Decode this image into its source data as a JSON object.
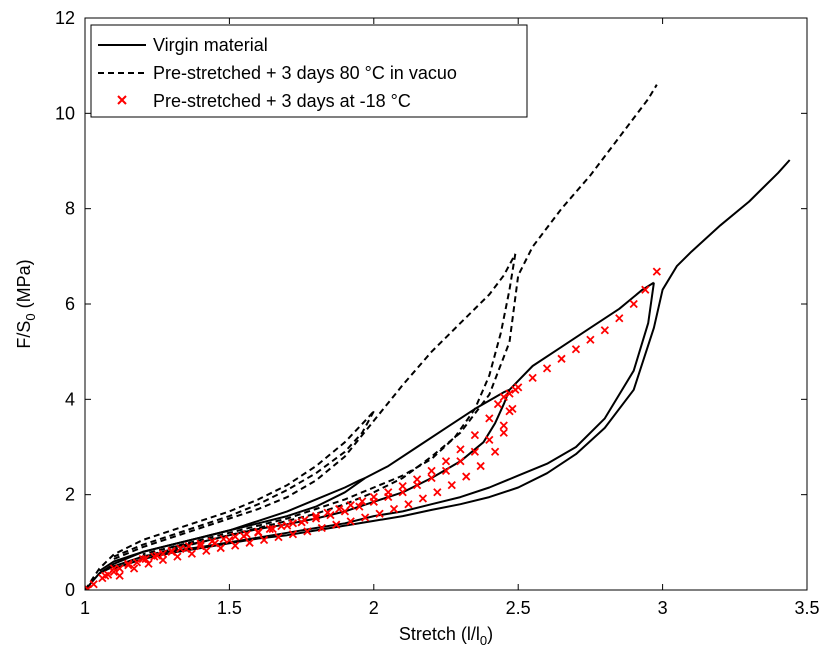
{
  "chart_data": {
    "type": "line",
    "xlabel": {
      "main": "Stretch (l/l",
      "sub": "0",
      "tail": ")"
    },
    "ylabel": {
      "main": "F/S",
      "sub": "0",
      "tail": " (MPa)"
    },
    "xlim": [
      1,
      3.5
    ],
    "ylim": [
      0,
      12
    ],
    "xticks": [
      1,
      1.5,
      2,
      2.5,
      3,
      3.5
    ],
    "yticks": [
      0,
      2,
      4,
      6,
      8,
      10,
      12
    ],
    "grid": false,
    "legend_position": "top-left",
    "colors": {
      "virgin": "#000000",
      "vacuo": "#000000",
      "frozen": "#ff0000"
    },
    "series": [
      {
        "name": "Virgin material",
        "style": "solid",
        "paths": [
          [
            [
              1.0,
              0.0
            ],
            [
              1.05,
              0.35
            ],
            [
              1.1,
              0.55
            ],
            [
              1.2,
              0.8
            ],
            [
              1.3,
              0.95
            ],
            [
              1.4,
              1.1
            ],
            [
              1.5,
              1.25
            ],
            [
              1.6,
              1.45
            ],
            [
              1.7,
              1.65
            ],
            [
              1.8,
              1.9
            ],
            [
              1.9,
              2.15
            ],
            [
              1.95,
              2.3
            ],
            [
              1.97,
              2.35
            ]
          ],
          [
            [
              1.97,
              2.35
            ],
            [
              1.9,
              2.05
            ],
            [
              1.8,
              1.75
            ],
            [
              1.7,
              1.55
            ],
            [
              1.6,
              1.4
            ],
            [
              1.5,
              1.25
            ],
            [
              1.4,
              1.1
            ],
            [
              1.3,
              0.95
            ],
            [
              1.2,
              0.8
            ],
            [
              1.1,
              0.6
            ],
            [
              1.05,
              0.4
            ]
          ],
          [
            [
              1.97,
              2.35
            ],
            [
              2.05,
              2.6
            ],
            [
              2.15,
              3.0
            ],
            [
              2.25,
              3.4
            ],
            [
              2.35,
              3.8
            ],
            [
              2.45,
              4.15
            ],
            [
              2.47,
              4.2
            ]
          ],
          [
            [
              2.47,
              4.2
            ],
            [
              2.45,
              3.9
            ],
            [
              2.42,
              3.5
            ],
            [
              2.38,
              3.1
            ],
            [
              2.3,
              2.7
            ],
            [
              2.2,
              2.35
            ],
            [
              2.1,
              2.05
            ],
            [
              2.0,
              1.85
            ],
            [
              1.9,
              1.65
            ],
            [
              1.8,
              1.5
            ],
            [
              1.7,
              1.38
            ],
            [
              1.6,
              1.28
            ],
            [
              1.5,
              1.15
            ],
            [
              1.4,
              1.0
            ],
            [
              1.3,
              0.9
            ]
          ],
          [
            [
              2.47,
              4.2
            ],
            [
              2.55,
              4.7
            ],
            [
              2.65,
              5.1
            ],
            [
              2.75,
              5.5
            ],
            [
              2.85,
              5.9
            ],
            [
              2.93,
              6.3
            ],
            [
              2.97,
              6.45
            ]
          ],
          [
            [
              2.97,
              6.45
            ],
            [
              2.95,
              5.6
            ],
            [
              2.9,
              4.6
            ],
            [
              2.8,
              3.6
            ],
            [
              2.7,
              3.0
            ],
            [
              2.6,
              2.65
            ],
            [
              2.5,
              2.4
            ],
            [
              2.4,
              2.15
            ],
            [
              2.3,
              1.95
            ],
            [
              2.2,
              1.8
            ],
            [
              2.1,
              1.65
            ],
            [
              2.0,
              1.55
            ],
            [
              1.9,
              1.4
            ],
            [
              1.8,
              1.3
            ],
            [
              1.7,
              1.2
            ],
            [
              1.6,
              1.1
            ],
            [
              1.5,
              1.0
            ],
            [
              1.4,
              0.9
            ],
            [
              1.3,
              0.82
            ],
            [
              1.2,
              0.7
            ],
            [
              1.1,
              0.5
            ],
            [
              1.05,
              0.35
            ]
          ],
          [
            [
              1.1,
              0.45
            ],
            [
              1.2,
              0.65
            ],
            [
              1.3,
              0.78
            ],
            [
              1.4,
              0.88
            ],
            [
              1.5,
              0.98
            ],
            [
              1.6,
              1.08
            ],
            [
              1.7,
              1.15
            ],
            [
              1.8,
              1.25
            ],
            [
              1.9,
              1.35
            ],
            [
              2.0,
              1.45
            ],
            [
              2.1,
              1.55
            ],
            [
              2.2,
              1.68
            ],
            [
              2.3,
              1.8
            ],
            [
              2.4,
              1.95
            ],
            [
              2.5,
              2.15
            ],
            [
              2.6,
              2.45
            ],
            [
              2.7,
              2.85
            ],
            [
              2.8,
              3.4
            ],
            [
              2.9,
              4.2
            ],
            [
              2.97,
              5.5
            ],
            [
              3.0,
              6.3
            ],
            [
              3.05,
              6.8
            ],
            [
              3.1,
              7.1
            ],
            [
              3.2,
              7.65
            ],
            [
              3.3,
              8.15
            ],
            [
              3.4,
              8.75
            ],
            [
              3.44,
              9.02
            ]
          ]
        ]
      },
      {
        "name": "Pre-stretched + 3 days 80 °C in vacuo",
        "style": "dashed",
        "paths": [
          [
            [
              1.0,
              0.0
            ],
            [
              1.05,
              0.45
            ],
            [
              1.1,
              0.75
            ],
            [
              1.2,
              1.05
            ],
            [
              1.3,
              1.25
            ],
            [
              1.4,
              1.45
            ],
            [
              1.5,
              1.65
            ],
            [
              1.6,
              1.9
            ],
            [
              1.7,
              2.2
            ],
            [
              1.8,
              2.6
            ],
            [
              1.9,
              3.1
            ],
            [
              1.97,
              3.55
            ],
            [
              2.0,
              3.75
            ]
          ],
          [
            [
              2.0,
              3.75
            ],
            [
              1.96,
              3.3
            ],
            [
              1.9,
              2.9
            ],
            [
              1.8,
              2.45
            ],
            [
              1.7,
              2.1
            ],
            [
              1.6,
              1.8
            ],
            [
              1.5,
              1.55
            ],
            [
              1.4,
              1.35
            ],
            [
              1.3,
              1.15
            ],
            [
              1.2,
              0.95
            ],
            [
              1.1,
              0.7
            ]
          ],
          [
            [
              1.1,
              0.65
            ],
            [
              1.2,
              0.9
            ],
            [
              1.3,
              1.1
            ],
            [
              1.4,
              1.3
            ],
            [
              1.5,
              1.5
            ],
            [
              1.6,
              1.7
            ],
            [
              1.7,
              1.95
            ],
            [
              1.8,
              2.3
            ],
            [
              1.9,
              2.8
            ],
            [
              2.0,
              3.55
            ],
            [
              2.1,
              4.3
            ],
            [
              2.2,
              5.0
            ],
            [
              2.3,
              5.6
            ],
            [
              2.4,
              6.2
            ],
            [
              2.45,
              6.6
            ],
            [
              2.49,
              7.05
            ]
          ],
          [
            [
              2.49,
              7.05
            ],
            [
              2.47,
              6.3
            ],
            [
              2.44,
              5.4
            ],
            [
              2.4,
              4.5
            ],
            [
              2.35,
              3.8
            ],
            [
              2.28,
              3.2
            ],
            [
              2.2,
              2.75
            ],
            [
              2.1,
              2.4
            ],
            [
              2.0,
              2.15
            ],
            [
              1.9,
              1.9
            ],
            [
              1.8,
              1.7
            ],
            [
              1.7,
              1.5
            ],
            [
              1.6,
              1.35
            ],
            [
              1.5,
              1.2
            ],
            [
              1.4,
              1.05
            ],
            [
              1.3,
              0.9
            ],
            [
              1.2,
              0.75
            ]
          ],
          [
            [
              1.2,
              0.7
            ],
            [
              1.3,
              0.85
            ],
            [
              1.4,
              1.0
            ],
            [
              1.5,
              1.15
            ],
            [
              1.6,
              1.3
            ],
            [
              1.7,
              1.45
            ],
            [
              1.8,
              1.6
            ],
            [
              1.9,
              1.8
            ],
            [
              2.0,
              2.05
            ],
            [
              2.1,
              2.35
            ],
            [
              2.2,
              2.8
            ],
            [
              2.3,
              3.3
            ],
            [
              2.4,
              4.1
            ],
            [
              2.47,
              5.2
            ],
            [
              2.5,
              6.6
            ],
            [
              2.55,
              7.2
            ],
            [
              2.65,
              8.0
            ],
            [
              2.75,
              8.7
            ],
            [
              2.85,
              9.5
            ],
            [
              2.95,
              10.3
            ],
            [
              2.98,
              10.6
            ]
          ]
        ]
      },
      {
        "name": "Pre-stretched + 3 days at -18 °C",
        "style": "marker-x",
        "points": [
          [
            1.01,
            0.02
          ],
          [
            1.03,
            0.12
          ],
          [
            1.06,
            0.25
          ],
          [
            1.08,
            0.32
          ],
          [
            1.1,
            0.38
          ],
          [
            1.12,
            0.45
          ],
          [
            1.15,
            0.52
          ],
          [
            1.18,
            0.58
          ],
          [
            1.21,
            0.65
          ],
          [
            1.24,
            0.7
          ],
          [
            1.27,
            0.76
          ],
          [
            1.3,
            0.82
          ],
          [
            1.33,
            0.87
          ],
          [
            1.36,
            0.92
          ],
          [
            1.4,
            0.97
          ],
          [
            1.44,
            1.02
          ],
          [
            1.48,
            1.07
          ],
          [
            1.52,
            1.12
          ],
          [
            1.56,
            1.17
          ],
          [
            1.6,
            1.22
          ],
          [
            1.64,
            1.28
          ],
          [
            1.68,
            1.34
          ],
          [
            1.72,
            1.4
          ],
          [
            1.76,
            1.47
          ],
          [
            1.8,
            1.55
          ],
          [
            1.84,
            1.62
          ],
          [
            1.88,
            1.7
          ],
          [
            1.92,
            1.78
          ],
          [
            1.96,
            1.86
          ],
          [
            2.0,
            1.95
          ],
          [
            2.05,
            2.05
          ],
          [
            2.1,
            2.18
          ],
          [
            2.15,
            2.32
          ],
          [
            2.2,
            2.5
          ],
          [
            2.25,
            2.7
          ],
          [
            2.3,
            2.95
          ],
          [
            2.35,
            3.25
          ],
          [
            2.4,
            3.6
          ],
          [
            2.43,
            3.9
          ],
          [
            2.45,
            4.05
          ],
          [
            2.47,
            4.12
          ],
          [
            2.49,
            4.2
          ],
          [
            2.48,
            3.8
          ],
          [
            2.45,
            3.45
          ],
          [
            2.4,
            3.15
          ],
          [
            2.35,
            2.9
          ],
          [
            2.3,
            2.7
          ],
          [
            2.25,
            2.5
          ],
          [
            2.2,
            2.35
          ],
          [
            2.15,
            2.2
          ],
          [
            2.1,
            2.05
          ],
          [
            2.05,
            1.95
          ],
          [
            2.0,
            1.85
          ],
          [
            1.95,
            1.75
          ],
          [
            1.9,
            1.65
          ],
          [
            1.85,
            1.57
          ],
          [
            1.8,
            1.5
          ],
          [
            1.75,
            1.42
          ],
          [
            1.7,
            1.35
          ],
          [
            1.65,
            1.28
          ],
          [
            1.6,
            1.2
          ],
          [
            1.55,
            1.13
          ],
          [
            1.5,
            1.05
          ],
          [
            1.45,
            0.98
          ],
          [
            1.4,
            0.92
          ],
          [
            1.35,
            0.86
          ],
          [
            1.3,
            0.8
          ],
          [
            1.25,
            0.72
          ],
          [
            1.2,
            0.65
          ],
          [
            1.15,
            0.55
          ],
          [
            1.1,
            0.45
          ],
          [
            1.07,
            0.3
          ],
          [
            1.12,
            0.3
          ],
          [
            1.17,
            0.45
          ],
          [
            1.22,
            0.55
          ],
          [
            1.27,
            0.63
          ],
          [
            1.32,
            0.7
          ],
          [
            1.37,
            0.76
          ],
          [
            1.42,
            0.82
          ],
          [
            1.47,
            0.88
          ],
          [
            1.52,
            0.93
          ],
          [
            1.57,
            0.99
          ],
          [
            1.62,
            1.05
          ],
          [
            1.67,
            1.11
          ],
          [
            1.72,
            1.17
          ],
          [
            1.77,
            1.23
          ],
          [
            1.82,
            1.3
          ],
          [
            1.87,
            1.37
          ],
          [
            1.92,
            1.44
          ],
          [
            1.97,
            1.52
          ],
          [
            2.02,
            1.6
          ],
          [
            2.07,
            1.7
          ],
          [
            2.12,
            1.8
          ],
          [
            2.17,
            1.92
          ],
          [
            2.22,
            2.05
          ],
          [
            2.27,
            2.2
          ],
          [
            2.32,
            2.38
          ],
          [
            2.37,
            2.6
          ],
          [
            2.42,
            2.9
          ],
          [
            2.45,
            3.3
          ],
          [
            2.47,
            3.75
          ],
          [
            2.5,
            4.25
          ],
          [
            2.55,
            4.45
          ],
          [
            2.6,
            4.65
          ],
          [
            2.65,
            4.85
          ],
          [
            2.7,
            5.05
          ],
          [
            2.75,
            5.25
          ],
          [
            2.8,
            5.45
          ],
          [
            2.85,
            5.7
          ],
          [
            2.9,
            6.0
          ],
          [
            2.94,
            6.3
          ],
          [
            2.98,
            6.68
          ]
        ]
      }
    ]
  }
}
